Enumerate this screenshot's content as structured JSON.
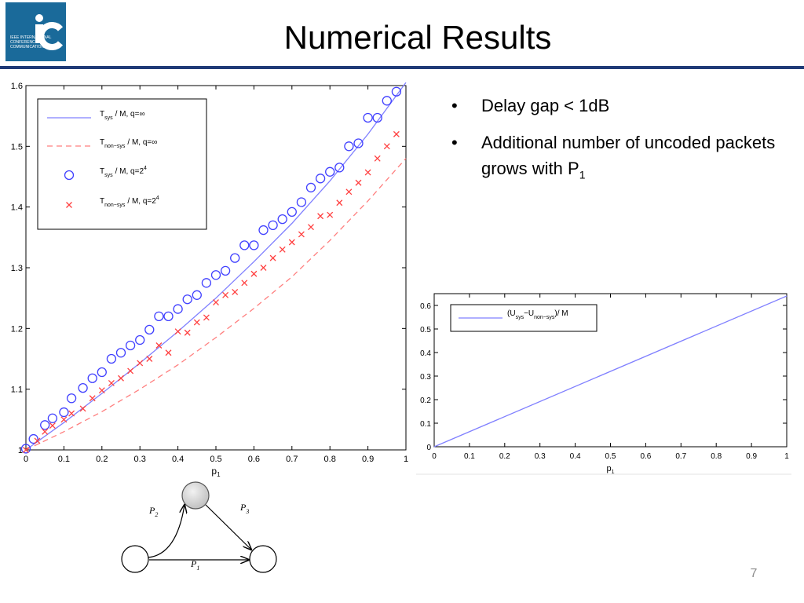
{
  "slide": {
    "title": "Numerical Results",
    "page_number": "7",
    "logo": {
      "brand_color": "#1a6a9a",
      "text": "IEEE INTERNATIONAL CONFERENCE ON COMMUNICATIONS"
    },
    "bullets": [
      {
        "text": "Delay gap < 1dB"
      },
      {
        "text": "Additional number of uncoded packets grows with P",
        "subscript": "1"
      }
    ],
    "graph": {
      "edge_labels": [
        {
          "main": "P",
          "sub": "2"
        },
        {
          "main": "P",
          "sub": "3"
        },
        {
          "main": "P",
          "sub": "1"
        }
      ]
    }
  },
  "chart_data": [
    {
      "type": "line",
      "xlabel": "p",
      "xlabel_sub": "1",
      "ylabel": "",
      "xlim": [
        0,
        1
      ],
      "ylim": [
        1,
        1.6
      ],
      "xticks": [
        "0",
        "0.1",
        "0.2",
        "0.3",
        "0.4",
        "0.5",
        "0.6",
        "0.7",
        "0.8",
        "0.9",
        "1"
      ],
      "yticks": [
        "1",
        "1.1",
        "1.2",
        "1.3",
        "1.4",
        "1.5",
        "1.6"
      ],
      "legend_position": "top-left",
      "series": [
        {
          "name": "T_sys / M, q=∞",
          "legend": {
            "main": "T",
            "sub": "sys",
            "rest": "/ M, q=∞"
          },
          "style": "solid",
          "color": "#8080ff",
          "x": [
            0,
            0.1,
            0.2,
            0.3,
            0.4,
            0.5,
            0.6,
            0.7,
            0.8,
            0.9,
            1.0
          ],
          "y": [
            1.0,
            1.045,
            1.093,
            1.143,
            1.195,
            1.25,
            1.31,
            1.373,
            1.443,
            1.52,
            1.605
          ]
        },
        {
          "name": "T_non-sys / M, q=∞",
          "legend": {
            "main": "T",
            "sub": "non−sys",
            "rest": "/ M, q=∞"
          },
          "style": "dashed",
          "color": "#ff7f7f",
          "x": [
            0,
            0.1,
            0.2,
            0.3,
            0.4,
            0.5,
            0.6,
            0.7,
            0.8,
            0.9,
            1.0
          ],
          "y": [
            1.0,
            1.03,
            1.063,
            1.1,
            1.14,
            1.185,
            1.233,
            1.285,
            1.345,
            1.41,
            1.48
          ]
        },
        {
          "name": "T_sys / M, q=2^4",
          "legend": {
            "main": "T",
            "sub": "sys",
            "rest": "/ M, q=2",
            "sup": "4"
          },
          "style": "circle",
          "color": "#4040ff",
          "x": [
            0,
            0.02,
            0.05,
            0.07,
            0.1,
            0.12,
            0.15,
            0.175,
            0.2,
            0.225,
            0.25,
            0.275,
            0.3,
            0.325,
            0.35,
            0.375,
            0.4,
            0.425,
            0.45,
            0.475,
            0.5,
            0.525,
            0.55,
            0.575,
            0.6,
            0.625,
            0.65,
            0.675,
            0.7,
            0.725,
            0.75,
            0.775,
            0.8,
            0.825,
            0.85,
            0.875,
            0.9,
            0.925,
            0.95,
            0.975
          ],
          "y": [
            1.002,
            1.018,
            1.041,
            1.052,
            1.062,
            1.085,
            1.102,
            1.118,
            1.128,
            1.15,
            1.16,
            1.172,
            1.181,
            1.198,
            1.22,
            1.22,
            1.232,
            1.248,
            1.255,
            1.275,
            1.288,
            1.295,
            1.316,
            1.337,
            1.337,
            1.362,
            1.37,
            1.38,
            1.392,
            1.408,
            1.432,
            1.447,
            1.458,
            1.465,
            1.5,
            1.505,
            1.547,
            1.547,
            1.575,
            1.59
          ]
        },
        {
          "name": "T_non-sys / M, q=2^4",
          "legend": {
            "main": "T",
            "sub": "non−sys",
            "rest": "/ M, q=2",
            "sup": "4"
          },
          "style": "cross",
          "color": "#ff4040",
          "x": [
            0,
            0.03,
            0.05,
            0.07,
            0.1,
            0.12,
            0.15,
            0.175,
            0.2,
            0.225,
            0.25,
            0.275,
            0.3,
            0.325,
            0.35,
            0.375,
            0.4,
            0.425,
            0.45,
            0.475,
            0.5,
            0.525,
            0.55,
            0.575,
            0.6,
            0.625,
            0.65,
            0.675,
            0.7,
            0.725,
            0.75,
            0.775,
            0.8,
            0.825,
            0.85,
            0.875,
            0.9,
            0.925,
            0.95,
            0.975
          ],
          "y": [
            1.0,
            1.015,
            1.03,
            1.04,
            1.05,
            1.06,
            1.068,
            1.085,
            1.098,
            1.11,
            1.118,
            1.13,
            1.143,
            1.15,
            1.172,
            1.16,
            1.195,
            1.193,
            1.21,
            1.218,
            1.243,
            1.255,
            1.26,
            1.275,
            1.29,
            1.3,
            1.316,
            1.33,
            1.342,
            1.355,
            1.367,
            1.385,
            1.387,
            1.407,
            1.425,
            1.44,
            1.457,
            1.48,
            1.5,
            1.52
          ]
        }
      ]
    },
    {
      "type": "line",
      "xlabel": "p",
      "xlabel_sub": "1",
      "ylabel": "",
      "xlim": [
        0,
        1
      ],
      "ylim": [
        0,
        0.65
      ],
      "xticks": [
        "0",
        "0.1",
        "0.2",
        "0.3",
        "0.4",
        "0.5",
        "0.6",
        "0.7",
        "0.8",
        "0.9",
        "1"
      ],
      "yticks": [
        "0",
        "0.1",
        "0.2",
        "0.3",
        "0.4",
        "0.5",
        "0.6"
      ],
      "legend_position": "top-left",
      "series": [
        {
          "name": "(U_sys − U_non-sys) / M",
          "legend": {
            "prefix": "(U",
            "sub1": "sys",
            "mid": "−U",
            "sub2": "non−sys",
            "rest": ")/ M"
          },
          "style": "solid",
          "color": "#8080ff",
          "x": [
            0,
            1
          ],
          "y": [
            0,
            0.64
          ]
        }
      ]
    }
  ]
}
